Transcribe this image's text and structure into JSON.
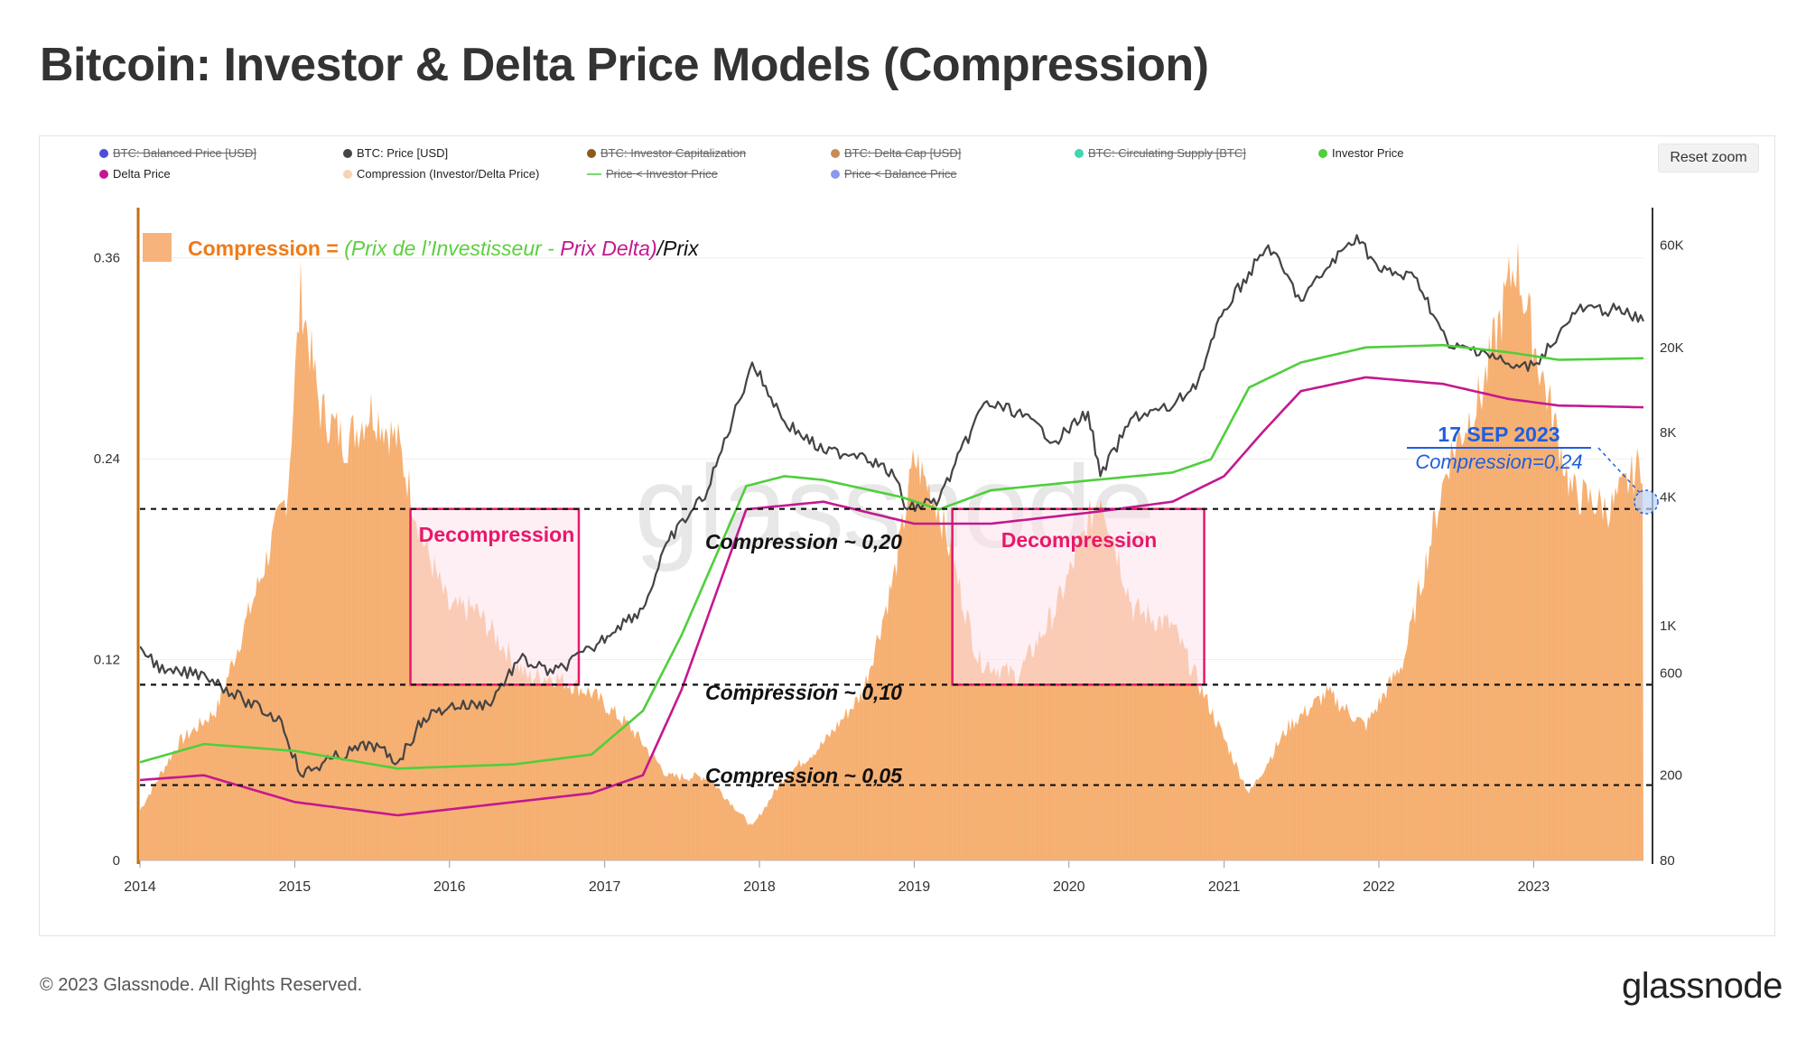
{
  "title": "Bitcoin: Investor & Delta Price Models (Compression)",
  "reset_zoom": "Reset zoom",
  "footer": {
    "copyright": "© 2023 Glassnode. All Rights Reserved.",
    "logo": "glassnode"
  },
  "watermark": "glassnode",
  "legend": [
    {
      "label": "BTC: Balanced Price [USD]",
      "color": "#4b4fd8",
      "shape": "dot",
      "hidden": true
    },
    {
      "label": "BTC: Price [USD]",
      "color": "#444444",
      "shape": "dot",
      "hidden": false
    },
    {
      "label": "BTC: Investor Capitalization",
      "color": "#8b5a1e",
      "shape": "dot",
      "hidden": true
    },
    {
      "label": "BTC: Delta Cap [USD]",
      "color": "#c98a56",
      "shape": "dot",
      "hidden": true
    },
    {
      "label": "BTC: Circulating Supply [BTC]",
      "color": "#3fd6b0",
      "shape": "dot",
      "hidden": true
    },
    {
      "label": "Investor Price",
      "color": "#4fcf3c",
      "shape": "dot",
      "hidden": false
    },
    {
      "label": "Delta Price",
      "color": "#c4188f",
      "shape": "dot",
      "hidden": false
    },
    {
      "label": "Compression (Investor/Delta Price)",
      "color": "#f7d3b4",
      "shape": "dot",
      "hidden": false
    },
    {
      "label": "Price < Investor Price",
      "color": "#7cd66f",
      "shape": "line",
      "hidden": true
    },
    {
      "label": "Price < Balance Price",
      "color": "#8d97ee",
      "shape": "dot",
      "hidden": true
    }
  ],
  "formula": {
    "lead": "Compression",
    "eq": " = ",
    "open": "(",
    "investor": "Prix de l’Investisseur",
    "minus": " - ",
    "delta": "Prix Delta",
    "close": ")",
    "tail": "/Prix",
    "colors": {
      "lead": "#f07a17",
      "investor": "#5ccf3d",
      "delta": "#c4188f",
      "tail": "#111111",
      "swatch": "#f6b47c"
    }
  },
  "annotations": {
    "decompression_1": "Decompression",
    "decompression_2": "Decompression",
    "level_020": "Compression ~ 0,20",
    "level_010": "Compression ~ 0,10",
    "level_005": "Compression ~ 0,05",
    "callout_date": "17 SEP 2023",
    "callout_value": "Compression=0,24"
  },
  "chart_data": {
    "type": "area",
    "x_axis": {
      "ticks": [
        "2014",
        "2015",
        "2016",
        "2017",
        "2018",
        "2019",
        "2020",
        "2021",
        "2022",
        "2023"
      ],
      "range": [
        "2014-01-01",
        "2023-09-17"
      ]
    },
    "y_left": {
      "label": "Compression",
      "ticks": [
        "0",
        "0.12",
        "0.24",
        "0.36"
      ],
      "range": [
        0,
        0.39
      ]
    },
    "y_right": {
      "label": "Price [USD]",
      "scale": "log",
      "ticks": [
        "80",
        "200",
        "600",
        "1K",
        "4K",
        "8K",
        "20K",
        "60K"
      ],
      "tick_values": [
        80,
        200,
        600,
        1000,
        4000,
        8000,
        20000,
        60000
      ],
      "range": [
        80,
        90000
      ]
    },
    "reference_lines": [
      0.21,
      0.105,
      0.045
    ],
    "decompression_zones": [
      {
        "from": "2015-10-01",
        "to": "2016-11-01",
        "y_from": 0.105,
        "y_to": 0.21
      },
      {
        "from": "2019-04-01",
        "to": "2020-11-15",
        "y_from": 0.105,
        "y_to": 0.21
      }
    ],
    "series": [
      {
        "name": "Compression (Investor/Delta Price)",
        "axis": "left",
        "color": "#f6a965",
        "points": [
          [
            "2014-01-01",
            0.03
          ],
          [
            "2014-04-01",
            0.07
          ],
          [
            "2014-07-01",
            0.09
          ],
          [
            "2014-10-01",
            0.16
          ],
          [
            "2014-12-15",
            0.22
          ],
          [
            "2015-01-15",
            0.34
          ],
          [
            "2015-03-01",
            0.27
          ],
          [
            "2015-05-01",
            0.25
          ],
          [
            "2015-07-01",
            0.27
          ],
          [
            "2015-09-01",
            0.25
          ],
          [
            "2015-11-01",
            0.19
          ],
          [
            "2016-01-01",
            0.15
          ],
          [
            "2016-03-01",
            0.15
          ],
          [
            "2016-05-01",
            0.13
          ],
          [
            "2016-07-01",
            0.11
          ],
          [
            "2016-09-01",
            0.11
          ],
          [
            "2016-12-01",
            0.1
          ],
          [
            "2017-03-01",
            0.08
          ],
          [
            "2017-06-01",
            0.05
          ],
          [
            "2017-09-01",
            0.05
          ],
          [
            "2017-12-15",
            0.02
          ],
          [
            "2018-03-01",
            0.05
          ],
          [
            "2018-06-01",
            0.07
          ],
          [
            "2018-09-01",
            0.1
          ],
          [
            "2018-11-15",
            0.17
          ],
          [
            "2019-01-01",
            0.24
          ],
          [
            "2019-03-01",
            0.21
          ],
          [
            "2019-06-01",
            0.12
          ],
          [
            "2019-09-01",
            0.11
          ],
          [
            "2019-12-01",
            0.15
          ],
          [
            "2020-03-15",
            0.22
          ],
          [
            "2020-06-01",
            0.15
          ],
          [
            "2020-09-01",
            0.14
          ],
          [
            "2020-12-01",
            0.09
          ],
          [
            "2021-03-01",
            0.04
          ],
          [
            "2021-06-01",
            0.08
          ],
          [
            "2021-09-01",
            0.1
          ],
          [
            "2021-12-01",
            0.08
          ],
          [
            "2022-03-01",
            0.12
          ],
          [
            "2022-06-15",
            0.24
          ],
          [
            "2022-09-01",
            0.28
          ],
          [
            "2022-11-20",
            0.36
          ],
          [
            "2023-01-01",
            0.31
          ],
          [
            "2023-04-01",
            0.22
          ],
          [
            "2023-07-01",
            0.21
          ],
          [
            "2023-09-17",
            0.24
          ]
        ]
      },
      {
        "name": "BTC: Price [USD]",
        "axis": "right",
        "color": "#444444",
        "points": [
          [
            "2014-01-01",
            800
          ],
          [
            "2014-03-01",
            600
          ],
          [
            "2014-06-01",
            600
          ],
          [
            "2014-09-01",
            450
          ],
          [
            "2014-12-01",
            360
          ],
          [
            "2015-01-15",
            200
          ],
          [
            "2015-04-01",
            240
          ],
          [
            "2015-07-01",
            280
          ],
          [
            "2015-09-01",
            230
          ],
          [
            "2015-11-01",
            370
          ],
          [
            "2016-01-01",
            420
          ],
          [
            "2016-04-01",
            430
          ],
          [
            "2016-06-15",
            700
          ],
          [
            "2016-09-01",
            600
          ],
          [
            "2016-12-01",
            780
          ],
          [
            "2017-02-01",
            1000
          ],
          [
            "2017-04-01",
            1200
          ],
          [
            "2017-06-01",
            2500
          ],
          [
            "2017-09-01",
            4300
          ],
          [
            "2017-12-15",
            17000
          ],
          [
            "2018-03-01",
            9000
          ],
          [
            "2018-06-01",
            6500
          ],
          [
            "2018-09-01",
            6400
          ],
          [
            "2018-11-15",
            5000
          ],
          [
            "2018-12-15",
            3500
          ],
          [
            "2019-03-01",
            3900
          ],
          [
            "2019-06-15",
            11000
          ],
          [
            "2019-09-01",
            10000
          ],
          [
            "2019-12-01",
            7300
          ],
          [
            "2020-02-15",
            10000
          ],
          [
            "2020-03-15",
            5000
          ],
          [
            "2020-06-01",
            9500
          ],
          [
            "2020-09-01",
            10500
          ],
          [
            "2020-11-01",
            14000
          ],
          [
            "2021-01-01",
            30000
          ],
          [
            "2021-04-15",
            60000
          ],
          [
            "2021-07-01",
            33000
          ],
          [
            "2021-09-01",
            47000
          ],
          [
            "2021-11-10",
            67000
          ],
          [
            "2022-01-01",
            46000
          ],
          [
            "2022-04-01",
            42000
          ],
          [
            "2022-06-15",
            20000
          ],
          [
            "2022-09-01",
            19500
          ],
          [
            "2022-11-15",
            16000
          ],
          [
            "2023-01-01",
            16500
          ],
          [
            "2023-03-01",
            23000
          ],
          [
            "2023-04-15",
            30000
          ],
          [
            "2023-07-15",
            30000
          ],
          [
            "2023-09-17",
            26500
          ]
        ]
      },
      {
        "name": "Investor Price",
        "axis": "right",
        "color": "#4fcf3c",
        "points": [
          [
            "2014-01-01",
            230
          ],
          [
            "2014-06-01",
            280
          ],
          [
            "2015-01-01",
            260
          ],
          [
            "2015-09-01",
            215
          ],
          [
            "2016-06-01",
            225
          ],
          [
            "2016-12-01",
            250
          ],
          [
            "2017-04-01",
            400
          ],
          [
            "2017-07-01",
            900
          ],
          [
            "2017-12-01",
            4500
          ],
          [
            "2018-03-01",
            5000
          ],
          [
            "2018-06-01",
            4800
          ],
          [
            "2018-12-01",
            4000
          ],
          [
            "2019-03-01",
            3500
          ],
          [
            "2019-07-01",
            4300
          ],
          [
            "2020-03-01",
            4800
          ],
          [
            "2020-09-01",
            5200
          ],
          [
            "2020-12-01",
            6000
          ],
          [
            "2021-03-01",
            13000
          ],
          [
            "2021-07-01",
            17000
          ],
          [
            "2021-12-01",
            20000
          ],
          [
            "2022-06-01",
            20500
          ],
          [
            "2022-11-01",
            19000
          ],
          [
            "2023-03-01",
            17500
          ],
          [
            "2023-09-17",
            17800
          ]
        ]
      },
      {
        "name": "Delta Price",
        "axis": "right",
        "color": "#c4188f",
        "points": [
          [
            "2014-01-01",
            190
          ],
          [
            "2014-06-01",
            200
          ],
          [
            "2015-01-01",
            150
          ],
          [
            "2015-09-01",
            130
          ],
          [
            "2016-06-01",
            150
          ],
          [
            "2016-12-01",
            165
          ],
          [
            "2017-04-01",
            200
          ],
          [
            "2017-07-01",
            500
          ],
          [
            "2017-12-01",
            3500
          ],
          [
            "2018-06-01",
            3800
          ],
          [
            "2019-01-01",
            3000
          ],
          [
            "2019-07-01",
            3000
          ],
          [
            "2020-03-01",
            3400
          ],
          [
            "2020-09-01",
            3800
          ],
          [
            "2021-01-01",
            5000
          ],
          [
            "2021-04-01",
            8000
          ],
          [
            "2021-07-01",
            12500
          ],
          [
            "2021-12-01",
            14500
          ],
          [
            "2022-06-01",
            13500
          ],
          [
            "2022-11-01",
            11500
          ],
          [
            "2023-03-01",
            10700
          ],
          [
            "2023-09-17",
            10500
          ]
        ]
      }
    ]
  }
}
